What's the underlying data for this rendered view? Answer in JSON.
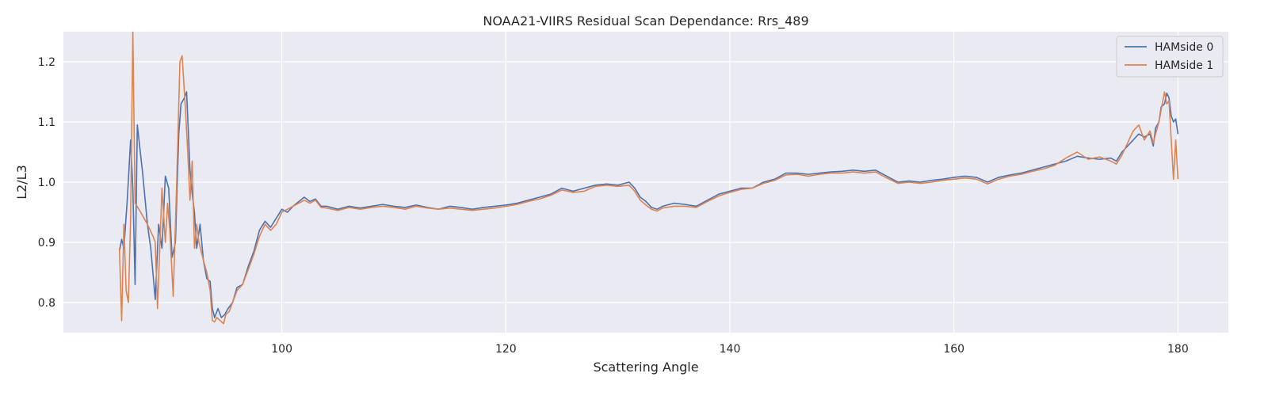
{
  "chart_data": {
    "type": "line",
    "title": "NOAA21-VIIRS Residual Scan Dependance: Rrs_489",
    "xlabel": "Scattering Angle",
    "ylabel": "L2/L3",
    "xlim": [
      80.5,
      184.5
    ],
    "ylim": [
      0.75,
      1.25
    ],
    "xticks": [
      100,
      120,
      140,
      160,
      180
    ],
    "yticks": [
      0.8,
      0.9,
      1.0,
      1.1,
      1.2
    ],
    "xtick_labels": [
      "100",
      "120",
      "140",
      "160",
      "180"
    ],
    "ytick_labels": [
      "0.8",
      "0.9",
      "1.0",
      "1.1",
      "1.2"
    ],
    "grid": true,
    "legend_position": "top-right",
    "plot_background": "#EAEAF2",
    "series": [
      {
        "name": "HAMside 0",
        "color": "#4C72B0",
        "points": [
          [
            85.5,
            0.885
          ],
          [
            85.7,
            0.905
          ],
          [
            85.9,
            0.89
          ],
          [
            86.2,
            0.97
          ],
          [
            86.5,
            1.07
          ],
          [
            86.7,
            0.99
          ],
          [
            86.9,
            0.83
          ],
          [
            87.1,
            1.095
          ],
          [
            87.6,
            1.01
          ],
          [
            88.0,
            0.93
          ],
          [
            88.3,
            0.89
          ],
          [
            88.7,
            0.805
          ],
          [
            89.0,
            0.93
          ],
          [
            89.3,
            0.89
          ],
          [
            89.6,
            1.01
          ],
          [
            89.9,
            0.99
          ],
          [
            90.2,
            0.875
          ],
          [
            90.5,
            0.9
          ],
          [
            90.8,
            1.08
          ],
          [
            91.0,
            1.13
          ],
          [
            91.3,
            1.14
          ],
          [
            91.5,
            1.15
          ],
          [
            91.8,
            1.02
          ],
          [
            92.0,
            0.98
          ],
          [
            92.2,
            0.95
          ],
          [
            92.4,
            0.89
          ],
          [
            92.7,
            0.93
          ],
          [
            93.0,
            0.87
          ],
          [
            93.3,
            0.84
          ],
          [
            93.6,
            0.835
          ],
          [
            93.8,
            0.79
          ],
          [
            94.0,
            0.775
          ],
          [
            94.3,
            0.79
          ],
          [
            94.6,
            0.775
          ],
          [
            94.9,
            0.78
          ],
          [
            95.2,
            0.79
          ],
          [
            95.6,
            0.8
          ],
          [
            96.0,
            0.825
          ],
          [
            96.5,
            0.83
          ],
          [
            97.0,
            0.86
          ],
          [
            97.5,
            0.885
          ],
          [
            98.0,
            0.92
          ],
          [
            98.5,
            0.935
          ],
          [
            99.0,
            0.925
          ],
          [
            99.5,
            0.94
          ],
          [
            100.0,
            0.955
          ],
          [
            100.5,
            0.95
          ],
          [
            101.0,
            0.96
          ],
          [
            102.0,
            0.975
          ],
          [
            102.5,
            0.968
          ],
          [
            103.0,
            0.972
          ],
          [
            103.5,
            0.96
          ],
          [
            104.0,
            0.96
          ],
          [
            105.0,
            0.955
          ],
          [
            106.0,
            0.96
          ],
          [
            107.0,
            0.957
          ],
          [
            108.0,
            0.96
          ],
          [
            109.0,
            0.963
          ],
          [
            110.0,
            0.96
          ],
          [
            111.0,
            0.958
          ],
          [
            112.0,
            0.962
          ],
          [
            113.0,
            0.958
          ],
          [
            114.0,
            0.955
          ],
          [
            115.0,
            0.96
          ],
          [
            116.0,
            0.958
          ],
          [
            117.0,
            0.955
          ],
          [
            118.0,
            0.958
          ],
          [
            119.0,
            0.96
          ],
          [
            120.0,
            0.962
          ],
          [
            121.0,
            0.965
          ],
          [
            122.0,
            0.97
          ],
          [
            123.0,
            0.975
          ],
          [
            124.0,
            0.98
          ],
          [
            125.0,
            0.99
          ],
          [
            126.0,
            0.985
          ],
          [
            127.0,
            0.99
          ],
          [
            128.0,
            0.995
          ],
          [
            129.0,
            0.997
          ],
          [
            130.0,
            0.995
          ],
          [
            131.0,
            1.0
          ],
          [
            131.5,
            0.99
          ],
          [
            132.0,
            0.975
          ],
          [
            132.5,
            0.968
          ],
          [
            133.0,
            0.958
          ],
          [
            133.5,
            0.955
          ],
          [
            134.0,
            0.96
          ],
          [
            135.0,
            0.965
          ],
          [
            136.0,
            0.963
          ],
          [
            137.0,
            0.96
          ],
          [
            138.0,
            0.97
          ],
          [
            139.0,
            0.98
          ],
          [
            140.0,
            0.985
          ],
          [
            141.0,
            0.99
          ],
          [
            142.0,
            0.99
          ],
          [
            143.0,
            1.0
          ],
          [
            144.0,
            1.005
          ],
          [
            145.0,
            1.015
          ],
          [
            146.0,
            1.015
          ],
          [
            147.0,
            1.013
          ],
          [
            148.0,
            1.015
          ],
          [
            149.0,
            1.017
          ],
          [
            150.0,
            1.018
          ],
          [
            151.0,
            1.02
          ],
          [
            152.0,
            1.018
          ],
          [
            153.0,
            1.02
          ],
          [
            154.0,
            1.01
          ],
          [
            155.0,
            1.0
          ],
          [
            156.0,
            1.002
          ],
          [
            157.0,
            1.0
          ],
          [
            158.0,
            1.003
          ],
          [
            159.0,
            1.005
          ],
          [
            160.0,
            1.008
          ],
          [
            161.0,
            1.01
          ],
          [
            162.0,
            1.008
          ],
          [
            163.0,
            1.0
          ],
          [
            164.0,
            1.008
          ],
          [
            165.0,
            1.012
          ],
          [
            166.0,
            1.015
          ],
          [
            167.0,
            1.02
          ],
          [
            168.0,
            1.025
          ],
          [
            169.0,
            1.03
          ],
          [
            170.0,
            1.035
          ],
          [
            171.0,
            1.043
          ],
          [
            172.0,
            1.04
          ],
          [
            173.0,
            1.038
          ],
          [
            174.0,
            1.04
          ],
          [
            174.5,
            1.035
          ],
          [
            175.0,
            1.05
          ],
          [
            175.5,
            1.06
          ],
          [
            176.0,
            1.07
          ],
          [
            176.5,
            1.08
          ],
          [
            177.0,
            1.075
          ],
          [
            177.5,
            1.08
          ],
          [
            177.8,
            1.06
          ],
          [
            178.0,
            1.09
          ],
          [
            178.3,
            1.1
          ],
          [
            178.5,
            1.125
          ],
          [
            178.8,
            1.13
          ],
          [
            179.0,
            1.148
          ],
          [
            179.2,
            1.14
          ],
          [
            179.4,
            1.11
          ],
          [
            179.6,
            1.1
          ],
          [
            179.8,
            1.105
          ],
          [
            180.0,
            1.08
          ]
        ]
      },
      {
        "name": "HAMside 1",
        "color": "#DD8452",
        "points": [
          [
            85.5,
            0.89
          ],
          [
            85.7,
            0.77
          ],
          [
            85.9,
            0.93
          ],
          [
            86.1,
            0.82
          ],
          [
            86.3,
            0.8
          ],
          [
            86.5,
            0.94
          ],
          [
            86.7,
            1.25
          ],
          [
            86.9,
            0.965
          ],
          [
            87.4,
            0.95
          ],
          [
            88.0,
            0.93
          ],
          [
            88.5,
            0.91
          ],
          [
            88.7,
            0.9
          ],
          [
            88.9,
            0.79
          ],
          [
            89.1,
            0.89
          ],
          [
            89.3,
            0.99
          ],
          [
            89.6,
            0.9
          ],
          [
            89.8,
            0.965
          ],
          [
            90.0,
            0.92
          ],
          [
            90.3,
            0.81
          ],
          [
            90.6,
            0.99
          ],
          [
            90.9,
            1.2
          ],
          [
            91.1,
            1.21
          ],
          [
            91.4,
            1.12
          ],
          [
            91.6,
            1.05
          ],
          [
            91.8,
            0.97
          ],
          [
            92.0,
            1.035
          ],
          [
            92.2,
            0.89
          ],
          [
            92.4,
            0.93
          ],
          [
            92.6,
            0.9
          ],
          [
            93.0,
            0.87
          ],
          [
            93.3,
            0.85
          ],
          [
            93.6,
            0.82
          ],
          [
            93.8,
            0.77
          ],
          [
            94.0,
            0.768
          ],
          [
            94.2,
            0.775
          ],
          [
            94.5,
            0.77
          ],
          [
            94.8,
            0.765
          ],
          [
            95.0,
            0.78
          ],
          [
            95.3,
            0.785
          ],
          [
            95.6,
            0.8
          ],
          [
            96.0,
            0.82
          ],
          [
            96.5,
            0.83
          ],
          [
            97.0,
            0.855
          ],
          [
            97.5,
            0.88
          ],
          [
            98.0,
            0.91
          ],
          [
            98.5,
            0.93
          ],
          [
            99.0,
            0.92
          ],
          [
            99.5,
            0.93
          ],
          [
            100.0,
            0.95
          ],
          [
            100.5,
            0.955
          ],
          [
            101.0,
            0.96
          ],
          [
            102.0,
            0.97
          ],
          [
            102.5,
            0.965
          ],
          [
            103.0,
            0.97
          ],
          [
            103.5,
            0.958
          ],
          [
            104.0,
            0.957
          ],
          [
            105.0,
            0.953
          ],
          [
            106.0,
            0.958
          ],
          [
            107.0,
            0.955
          ],
          [
            108.0,
            0.958
          ],
          [
            109.0,
            0.96
          ],
          [
            110.0,
            0.958
          ],
          [
            111.0,
            0.955
          ],
          [
            112.0,
            0.96
          ],
          [
            113.0,
            0.957
          ],
          [
            114.0,
            0.955
          ],
          [
            115.0,
            0.957
          ],
          [
            116.0,
            0.955
          ],
          [
            117.0,
            0.953
          ],
          [
            118.0,
            0.955
          ],
          [
            119.0,
            0.957
          ],
          [
            120.0,
            0.96
          ],
          [
            121.0,
            0.963
          ],
          [
            122.0,
            0.968
          ],
          [
            123.0,
            0.972
          ],
          [
            124.0,
            0.978
          ],
          [
            125.0,
            0.987
          ],
          [
            126.0,
            0.983
          ],
          [
            127.0,
            0.985
          ],
          [
            128.0,
            0.993
          ],
          [
            129.0,
            0.995
          ],
          [
            130.0,
            0.993
          ],
          [
            131.0,
            0.995
          ],
          [
            131.5,
            0.985
          ],
          [
            132.0,
            0.97
          ],
          [
            132.5,
            0.962
          ],
          [
            133.0,
            0.955
          ],
          [
            133.5,
            0.952
          ],
          [
            134.0,
            0.957
          ],
          [
            135.0,
            0.96
          ],
          [
            136.0,
            0.96
          ],
          [
            137.0,
            0.958
          ],
          [
            138.0,
            0.968
          ],
          [
            139.0,
            0.977
          ],
          [
            140.0,
            0.983
          ],
          [
            141.0,
            0.988
          ],
          [
            142.0,
            0.99
          ],
          [
            143.0,
            0.998
          ],
          [
            144.0,
            1.003
          ],
          [
            145.0,
            1.012
          ],
          [
            146.0,
            1.013
          ],
          [
            147.0,
            1.01
          ],
          [
            148.0,
            1.013
          ],
          [
            149.0,
            1.015
          ],
          [
            150.0,
            1.015
          ],
          [
            151.0,
            1.017
          ],
          [
            152.0,
            1.015
          ],
          [
            153.0,
            1.017
          ],
          [
            154.0,
            1.007
          ],
          [
            155.0,
            0.998
          ],
          [
            156.0,
            1.0
          ],
          [
            157.0,
            0.998
          ],
          [
            158.0,
            1.0
          ],
          [
            159.0,
            1.003
          ],
          [
            160.0,
            1.005
          ],
          [
            161.0,
            1.007
          ],
          [
            162.0,
            1.005
          ],
          [
            163.0,
            0.997
          ],
          [
            164.0,
            1.005
          ],
          [
            165.0,
            1.01
          ],
          [
            166.0,
            1.013
          ],
          [
            167.0,
            1.018
          ],
          [
            168.0,
            1.022
          ],
          [
            169.0,
            1.028
          ],
          [
            170.0,
            1.04
          ],
          [
            171.0,
            1.05
          ],
          [
            172.0,
            1.038
          ],
          [
            173.0,
            1.042
          ],
          [
            174.0,
            1.035
          ],
          [
            174.5,
            1.03
          ],
          [
            175.0,
            1.045
          ],
          [
            175.5,
            1.065
          ],
          [
            176.0,
            1.085
          ],
          [
            176.5,
            1.095
          ],
          [
            177.0,
            1.07
          ],
          [
            177.5,
            1.085
          ],
          [
            177.8,
            1.065
          ],
          [
            178.0,
            1.08
          ],
          [
            178.3,
            1.1
          ],
          [
            178.5,
            1.12
          ],
          [
            178.8,
            1.15
          ],
          [
            179.0,
            1.13
          ],
          [
            179.2,
            1.135
          ],
          [
            179.4,
            1.07
          ],
          [
            179.6,
            1.005
          ],
          [
            179.8,
            1.07
          ],
          [
            180.0,
            1.005
          ]
        ]
      }
    ]
  }
}
